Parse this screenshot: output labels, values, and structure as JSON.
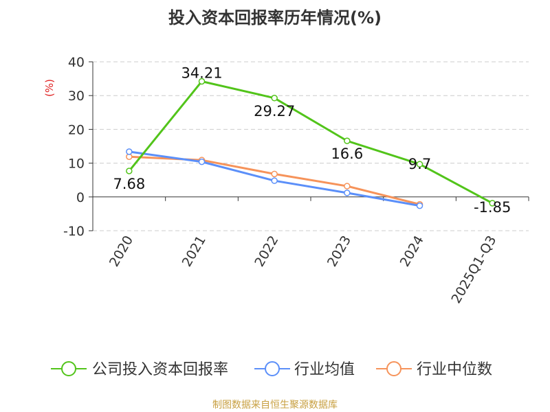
{
  "chart_data": {
    "type": "line",
    "title": "投入资本回报率历年情况(%)",
    "ylabel": "(%)",
    "categories": [
      "2020",
      "2021",
      "2022",
      "2023",
      "2024",
      "2025Q1-Q3"
    ],
    "ylim": [
      -10,
      40
    ],
    "yticks": [
      40,
      30,
      20,
      10,
      0,
      -10
    ],
    "grid": true,
    "legend_position": "bottom",
    "series": [
      {
        "name": "公司投入资本回报率",
        "color": "#52c41a",
        "values": [
          7.68,
          34.21,
          29.27,
          16.6,
          9.7,
          -1.85
        ],
        "labels": [
          "7.68",
          "34.21",
          "29.27",
          "16.6",
          "9.7",
          "-1.85"
        ]
      },
      {
        "name": "行业均值",
        "color": "#5b8ff9",
        "values": [
          13.4,
          10.4,
          4.8,
          1.2,
          -2.6,
          null
        ]
      },
      {
        "name": "行业中位数",
        "color": "#f6935a",
        "values": [
          11.9,
          10.9,
          6.8,
          3.2,
          -2.2,
          null
        ]
      }
    ]
  },
  "footer": {
    "source": "制图数据来自恒生聚源数据库"
  }
}
